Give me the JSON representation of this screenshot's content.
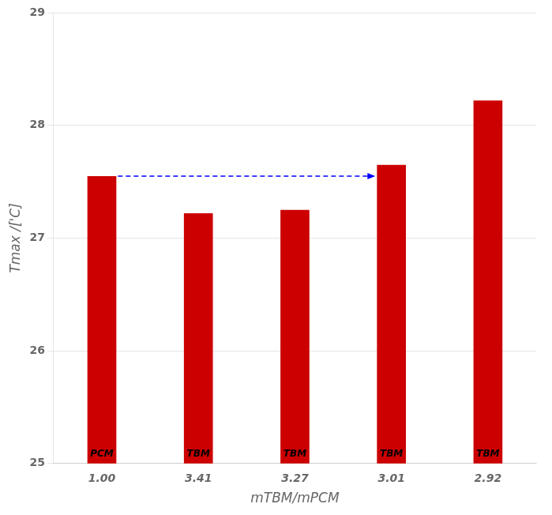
{
  "chart_data": {
    "type": "bar",
    "categories": [
      "1.00",
      "3.41",
      "3.27",
      "3.01",
      "2.92"
    ],
    "values": [
      27.55,
      27.22,
      27.25,
      27.65,
      28.22
    ],
    "bar_labels": [
      "PCM",
      "TBM",
      "TBM",
      "TBM",
      "TBM"
    ],
    "color": "#CC0000",
    "x_label": "mTBM/mPCM",
    "y_label": "Tmax /['C]",
    "ylim": [
      25,
      29
    ],
    "yticks": [
      25,
      26,
      27,
      28,
      29
    ],
    "grid": true,
    "annotations": [
      {
        "type": "arrow",
        "from": "1.00",
        "to": "3.01",
        "y": 27.55,
        "color": "blue",
        "line_style": "dashed"
      }
    ]
  }
}
